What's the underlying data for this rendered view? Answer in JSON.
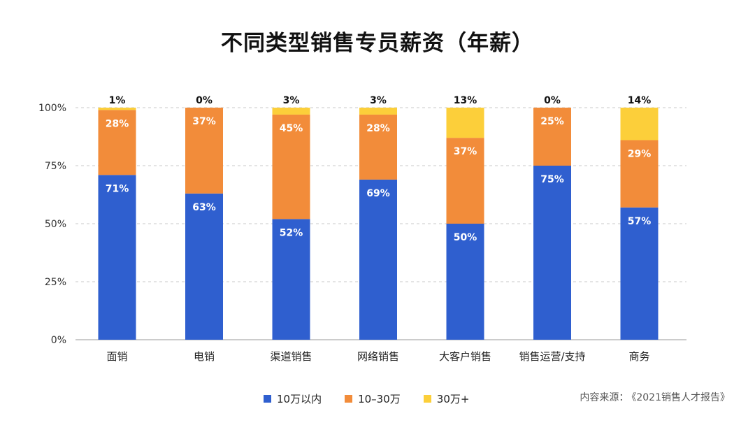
{
  "chart_data": {
    "type": "bar",
    "stacked": true,
    "title": "不同类型销售专员薪资（年薪）",
    "categories": [
      "面销",
      "电销",
      "渠道销售",
      "网络销售",
      "大客户销售",
      "销售运营/支持",
      "商务"
    ],
    "series": [
      {
        "name": "10万以内",
        "color": "#2f5fcf",
        "values": [
          71,
          63,
          52,
          69,
          50,
          75,
          57
        ]
      },
      {
        "name": "10–30万",
        "color": "#f28c3a",
        "values": [
          28,
          37,
          45,
          28,
          37,
          25,
          29
        ]
      },
      {
        "name": "30万+",
        "color": "#fccf3a",
        "values": [
          1,
          0,
          3,
          3,
          13,
          0,
          14
        ]
      }
    ],
    "yticks": [
      "0%",
      "25%",
      "50%",
      "75%",
      "100%"
    ],
    "ylim": [
      0,
      100
    ],
    "grid": true,
    "legend_position": "bottom"
  },
  "source": {
    "label": "内容来源：",
    "text": "《2021销售人才报告》"
  }
}
